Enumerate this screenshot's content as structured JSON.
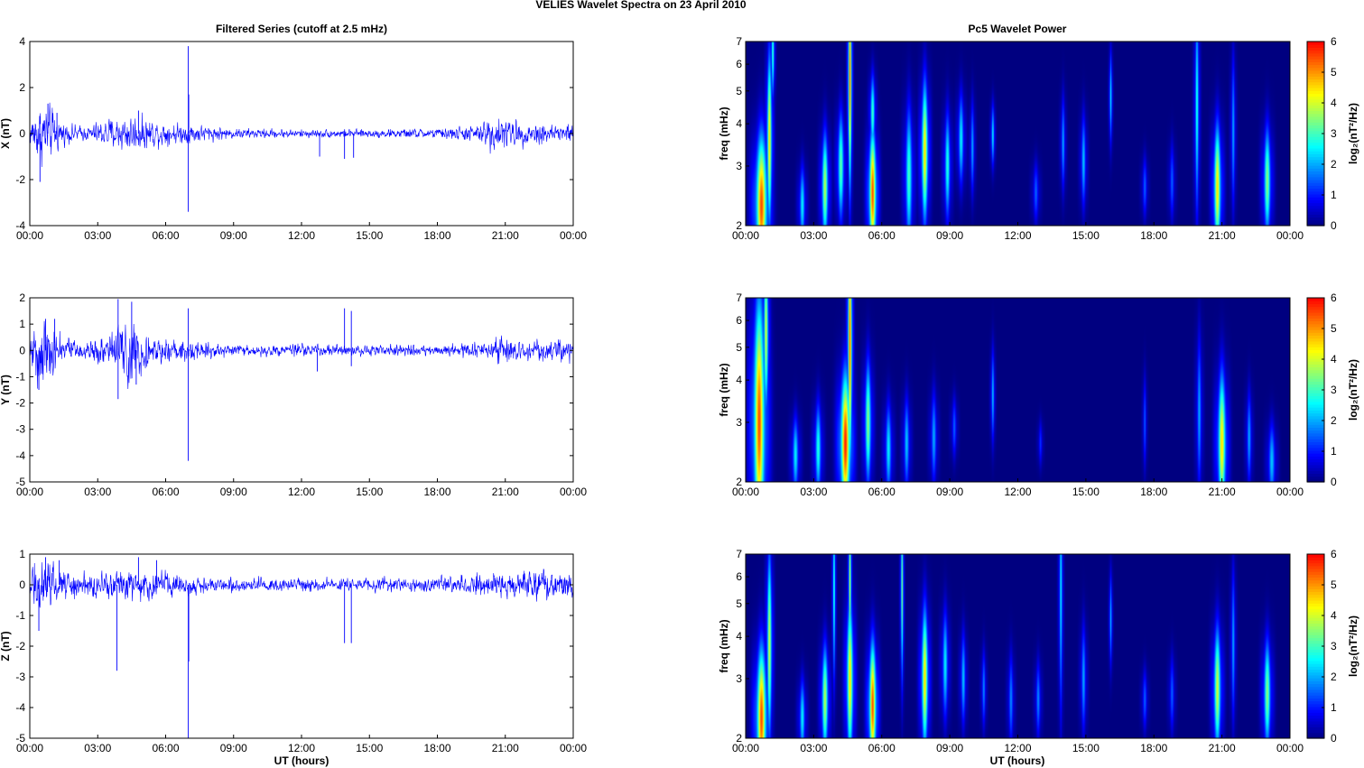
{
  "figure": {
    "title": "VELIES Wavelet Spectra on 23 April     2010",
    "left_title": "Filtered Series (cutoff at 2.5 mHz)",
    "right_title": "Pc5 Wavelet Power",
    "xlabel": "UT (hours)"
  },
  "colors": {
    "trace": "#0000ff",
    "spectrogram_background": "#00008f",
    "axis": "#000000",
    "colormap": "jet"
  },
  "chart_data": [
    {
      "type": "line",
      "component": "X",
      "ylabel": "X (nT)",
      "xlim": [
        0,
        24
      ],
      "ylim": [
        -4,
        4
      ],
      "yticks": [
        -4,
        -2,
        0,
        2,
        4
      ],
      "xticks": [
        0,
        3,
        6,
        9,
        12,
        15,
        18,
        21,
        24
      ],
      "xtick_labels": [
        "00:00",
        "03:00",
        "06:00",
        "09:00",
        "12:00",
        "15:00",
        "18:00",
        "21:00",
        "00:00"
      ],
      "activity": [
        [
          0,
          0.3
        ],
        [
          0.2,
          0.7
        ],
        [
          0.6,
          0.9
        ],
        [
          1.0,
          0.7
        ],
        [
          1.5,
          0.3
        ],
        [
          2.5,
          0.2
        ],
        [
          3.5,
          0.45
        ],
        [
          4.5,
          0.55
        ],
        [
          5.5,
          0.4
        ],
        [
          6.5,
          0.3
        ],
        [
          7.5,
          0.25
        ],
        [
          9,
          0.15
        ],
        [
          12,
          0.12
        ],
        [
          15,
          0.12
        ],
        [
          18,
          0.15
        ],
        [
          19.8,
          0.25
        ],
        [
          20.5,
          0.55
        ],
        [
          21.2,
          0.4
        ],
        [
          22.5,
          0.3
        ],
        [
          24,
          0.3
        ]
      ],
      "spikes": [
        [
          0.45,
          -2.1
        ],
        [
          0.8,
          1.3
        ],
        [
          1.2,
          0.9
        ],
        [
          4.8,
          1.0
        ],
        [
          7.0,
          3.8
        ],
        [
          7.0,
          -3.4
        ],
        [
          7.02,
          1.7
        ],
        [
          12.8,
          -1.0
        ],
        [
          13.9,
          -1.1
        ],
        [
          14.3,
          -1.05
        ]
      ]
    },
    {
      "type": "line",
      "component": "Y",
      "ylabel": "Y (nT)",
      "xlim": [
        0,
        24
      ],
      "ylim": [
        -5,
        2
      ],
      "yticks": [
        -5,
        -4,
        -3,
        -2,
        -1,
        0,
        1,
        2
      ],
      "xticks": [
        0,
        3,
        6,
        9,
        12,
        15,
        18,
        21,
        24
      ],
      "xtick_labels": [
        "00:00",
        "03:00",
        "06:00",
        "09:00",
        "12:00",
        "15:00",
        "18:00",
        "21:00",
        "00:00"
      ],
      "activity": [
        [
          0,
          0.4
        ],
        [
          0.3,
          0.9
        ],
        [
          0.8,
          0.9
        ],
        [
          1.5,
          0.35
        ],
        [
          2.5,
          0.2
        ],
        [
          3.5,
          0.4
        ],
        [
          4.2,
          0.9
        ],
        [
          4.8,
          0.8
        ],
        [
          5.5,
          0.35
        ],
        [
          6.5,
          0.3
        ],
        [
          7.5,
          0.2
        ],
        [
          9,
          0.15
        ],
        [
          12,
          0.15
        ],
        [
          15,
          0.15
        ],
        [
          18,
          0.15
        ],
        [
          20,
          0.2
        ],
        [
          21,
          0.35
        ],
        [
          22.5,
          0.25
        ],
        [
          24,
          0.3
        ]
      ],
      "spikes": [
        [
          0.4,
          -1.5
        ],
        [
          0.7,
          1.2
        ],
        [
          1.1,
          1.2
        ],
        [
          3.9,
          1.95
        ],
        [
          3.9,
          -1.85
        ],
        [
          4.5,
          1.85
        ],
        [
          4.7,
          -1.3
        ],
        [
          7.0,
          1.6
        ],
        [
          7.0,
          -4.2
        ],
        [
          12.7,
          -0.8
        ],
        [
          13.9,
          1.6
        ],
        [
          14.2,
          1.5
        ],
        [
          14.2,
          -0.6
        ]
      ]
    },
    {
      "type": "line",
      "component": "Z",
      "ylabel": "Z (nT)",
      "xlim": [
        0,
        24
      ],
      "ylim": [
        -5,
        1
      ],
      "yticks": [
        -5,
        -4,
        -3,
        -2,
        -1,
        0,
        1
      ],
      "xticks": [
        0,
        3,
        6,
        9,
        12,
        15,
        18,
        21,
        24
      ],
      "xtick_labels": [
        "00:00",
        "03:00",
        "06:00",
        "09:00",
        "12:00",
        "15:00",
        "18:00",
        "21:00",
        "00:00"
      ],
      "activity": [
        [
          0,
          0.3
        ],
        [
          0.3,
          0.6
        ],
        [
          0.8,
          0.6
        ],
        [
          1.5,
          0.3
        ],
        [
          3,
          0.25
        ],
        [
          4.5,
          0.35
        ],
        [
          5.5,
          0.3
        ],
        [
          7,
          0.2
        ],
        [
          9,
          0.15
        ],
        [
          12,
          0.15
        ],
        [
          15,
          0.15
        ],
        [
          18,
          0.15
        ],
        [
          20.2,
          0.25
        ],
        [
          21,
          0.35
        ],
        [
          22.5,
          0.3
        ],
        [
          24,
          0.3
        ]
      ],
      "spikes": [
        [
          0.4,
          -1.5
        ],
        [
          0.7,
          0.9
        ],
        [
          1.3,
          0.8
        ],
        [
          3.85,
          -2.8
        ],
        [
          4.8,
          0.9
        ],
        [
          5.6,
          0.8
        ],
        [
          7.0,
          -5.0
        ],
        [
          7.02,
          -2.5
        ],
        [
          13.9,
          -1.9
        ],
        [
          14.2,
          -1.9
        ]
      ]
    },
    {
      "type": "heatmap",
      "component": "X",
      "ylabel": "freq (mHz)",
      "colorbar_label": "log₂(nT²/Hz)",
      "xlim": [
        0,
        24
      ],
      "ylim": [
        2,
        7
      ],
      "yscale": "log",
      "yticks": [
        2,
        3,
        4,
        5,
        6,
        7
      ],
      "clim": [
        0,
        6
      ],
      "cticks": [
        0,
        1,
        2,
        3,
        4,
        5,
        6
      ],
      "xticks": [
        0,
        3,
        6,
        9,
        12,
        15,
        18,
        21,
        24
      ],
      "xtick_labels": [
        "00:00",
        "03:00",
        "06:00",
        "09:00",
        "12:00",
        "15:00",
        "18:00",
        "21:00",
        "00:00"
      ],
      "blobs": [
        [
          0.7,
          2.3,
          0.35,
          0.45,
          5.5
        ],
        [
          1.05,
          3.6,
          0.15,
          0.55,
          4.5
        ],
        [
          1.2,
          6.5,
          0.1,
          0.3,
          3
        ],
        [
          2.5,
          2.3,
          0.18,
          0.25,
          2.5
        ],
        [
          3.5,
          2.6,
          0.2,
          0.35,
          3.8
        ],
        [
          4.2,
          3.0,
          0.2,
          0.35,
          3.2
        ],
        [
          4.6,
          5.5,
          0.1,
          0.7,
          5.5
        ],
        [
          5.6,
          2.5,
          0.22,
          0.4,
          5.5
        ],
        [
          5.6,
          4.3,
          0.15,
          0.25,
          3
        ],
        [
          7.2,
          2.8,
          0.22,
          0.45,
          3
        ],
        [
          7.9,
          3.3,
          0.2,
          0.45,
          4.5
        ],
        [
          8.9,
          3.0,
          0.18,
          0.35,
          2.8
        ],
        [
          9.5,
          3.6,
          0.18,
          0.3,
          2.5
        ],
        [
          10.0,
          3.4,
          0.12,
          0.3,
          2
        ],
        [
          10.9,
          3.7,
          0.1,
          0.2,
          2.5
        ],
        [
          12.8,
          2.5,
          0.18,
          0.2,
          1.5
        ],
        [
          14.0,
          3.5,
          0.12,
          0.3,
          2
        ],
        [
          14.9,
          3.1,
          0.15,
          0.3,
          2.2
        ],
        [
          16.1,
          4.8,
          0.08,
          0.3,
          2.5
        ],
        [
          17.6,
          2.6,
          0.15,
          0.2,
          1.5
        ],
        [
          18.8,
          2.7,
          0.15,
          0.25,
          1.5
        ],
        [
          19.9,
          4.5,
          0.12,
          0.7,
          2.8
        ],
        [
          20.8,
          2.6,
          0.22,
          0.4,
          4.5
        ],
        [
          21.5,
          3.8,
          0.12,
          0.5,
          2
        ],
        [
          23.0,
          2.7,
          0.22,
          0.35,
          3.5
        ]
      ]
    },
    {
      "type": "heatmap",
      "component": "Y",
      "ylabel": "freq (mHz)",
      "colorbar_label": "log₂(nT²/Hz)",
      "xlim": [
        0,
        24
      ],
      "ylim": [
        2,
        7
      ],
      "yscale": "log",
      "yticks": [
        2,
        3,
        4,
        5,
        6,
        7
      ],
      "clim": [
        0,
        6
      ],
      "cticks": [
        0,
        1,
        2,
        3,
        4,
        5,
        6
      ],
      "xticks": [
        0,
        3,
        6,
        9,
        12,
        15,
        18,
        21,
        24
      ],
      "xtick_labels": [
        "00:00",
        "03:00",
        "06:00",
        "09:00",
        "12:00",
        "15:00",
        "18:00",
        "21:00",
        "00:00"
      ],
      "blobs": [
        [
          0.6,
          3.0,
          0.35,
          0.8,
          5.5
        ],
        [
          0.9,
          5.5,
          0.15,
          0.5,
          4.0
        ],
        [
          2.2,
          2.4,
          0.2,
          0.25,
          2.5
        ],
        [
          3.2,
          2.5,
          0.2,
          0.3,
          2.8
        ],
        [
          4.4,
          2.6,
          0.3,
          0.45,
          5.8
        ],
        [
          4.6,
          5.2,
          0.12,
          0.8,
          5.5
        ],
        [
          5.4,
          3.0,
          0.2,
          0.4,
          3.5
        ],
        [
          6.3,
          2.5,
          0.2,
          0.3,
          2.5
        ],
        [
          7.1,
          2.6,
          0.18,
          0.3,
          2.2
        ],
        [
          8.3,
          2.7,
          0.18,
          0.3,
          2
        ],
        [
          9.2,
          2.9,
          0.15,
          0.2,
          1.5
        ],
        [
          10.9,
          3.6,
          0.1,
          0.3,
          2.2
        ],
        [
          13.0,
          2.6,
          0.12,
          0.15,
          1.2
        ],
        [
          17.6,
          3.0,
          0.1,
          0.3,
          1.5
        ],
        [
          20.0,
          3.2,
          0.15,
          0.5,
          2
        ],
        [
          21.0,
          2.6,
          0.25,
          0.45,
          4.5
        ],
        [
          22.2,
          2.7,
          0.15,
          0.3,
          2
        ],
        [
          23.2,
          2.3,
          0.22,
          0.25,
          2.2
        ]
      ]
    },
    {
      "type": "heatmap",
      "component": "Z",
      "ylabel": "freq (mHz)",
      "colorbar_label": "log₂(nT²/Hz)",
      "xlim": [
        0,
        24
      ],
      "ylim": [
        2,
        7
      ],
      "yscale": "log",
      "yticks": [
        2,
        3,
        4,
        5,
        6,
        7
      ],
      "clim": [
        0,
        6
      ],
      "cticks": [
        0,
        1,
        2,
        3,
        4,
        5,
        6
      ],
      "xticks": [
        0,
        3,
        6,
        9,
        12,
        15,
        18,
        21,
        24
      ],
      "xtick_labels": [
        "00:00",
        "03:00",
        "06:00",
        "09:00",
        "12:00",
        "15:00",
        "18:00",
        "21:00",
        "00:00"
      ],
      "blobs": [
        [
          0.7,
          2.3,
          0.3,
          0.45,
          5.5
        ],
        [
          1.05,
          3.8,
          0.15,
          0.6,
          4
        ],
        [
          2.5,
          2.3,
          0.18,
          0.25,
          2.5
        ],
        [
          3.5,
          2.6,
          0.2,
          0.35,
          3.8
        ],
        [
          3.9,
          5.5,
          0.08,
          0.6,
          3
        ],
        [
          4.6,
          3.0,
          0.2,
          0.5,
          4.5
        ],
        [
          4.6,
          5.8,
          0.08,
          0.5,
          4
        ],
        [
          5.6,
          2.5,
          0.22,
          0.4,
          5.5
        ],
        [
          6.9,
          5.5,
          0.08,
          0.6,
          3.5
        ],
        [
          7.9,
          3.0,
          0.2,
          0.45,
          4.5
        ],
        [
          8.8,
          3.3,
          0.18,
          0.35,
          2.5
        ],
        [
          9.6,
          3.0,
          0.15,
          0.3,
          2.2
        ],
        [
          10.5,
          2.8,
          0.12,
          0.25,
          1.8
        ],
        [
          11.7,
          2.6,
          0.15,
          0.3,
          1.8
        ],
        [
          12.9,
          2.6,
          0.15,
          0.25,
          1.8
        ],
        [
          13.9,
          5.5,
          0.1,
          0.8,
          2.5
        ],
        [
          14.9,
          3.0,
          0.15,
          0.35,
          2
        ],
        [
          16.1,
          4.5,
          0.08,
          0.3,
          2.2
        ],
        [
          17.6,
          2.6,
          0.15,
          0.2,
          1.5
        ],
        [
          18.8,
          2.7,
          0.15,
          0.25,
          1.5
        ],
        [
          20.8,
          2.8,
          0.22,
          0.4,
          4
        ],
        [
          21.5,
          3.8,
          0.12,
          0.5,
          2
        ],
        [
          23.0,
          2.7,
          0.22,
          0.35,
          3.5
        ]
      ]
    }
  ]
}
